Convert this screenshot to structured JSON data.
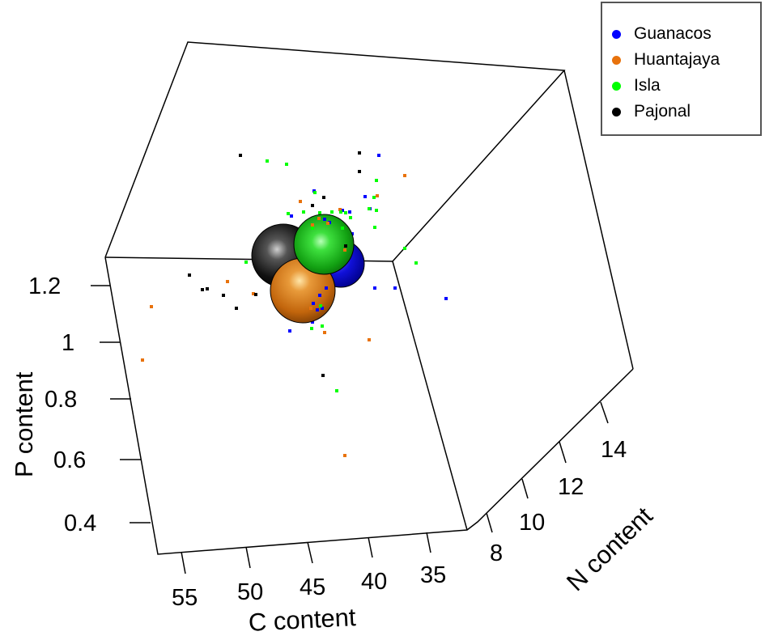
{
  "chart_data": {
    "type": "scatter3d",
    "title": "",
    "axes": {
      "x": {
        "label": "C content",
        "ticks": [
          55,
          50,
          45,
          40,
          35
        ],
        "range": [
          33,
          57
        ]
      },
      "y": {
        "label": "N content",
        "ticks": [
          8,
          10,
          12,
          14
        ],
        "range": [
          7,
          15.5
        ]
      },
      "z": {
        "label": "P content",
        "ticks": [
          1.2,
          1,
          0.8,
          0.6,
          0.4
        ],
        "range": [
          0.35,
          1.3
        ]
      }
    },
    "legend_position": "top-right",
    "grid": false,
    "series": [
      {
        "name": "Guanacos",
        "color": "#0000ff",
        "centroid_sphere": true
      },
      {
        "name": "Huantajaya",
        "color": "#e8720c",
        "centroid_sphere": true
      },
      {
        "name": "Isla",
        "color": "#00ff00",
        "centroid_sphere": true
      },
      {
        "name": "Pajonal",
        "color": "#000000",
        "centroid_sphere": true
      }
    ],
    "projected_points": {
      "Guanacos": [
        [
          468,
          192
        ],
        [
          388,
          236
        ],
        [
          451,
          243
        ],
        [
          457,
          258
        ],
        [
          360,
          267
        ],
        [
          423,
          260
        ],
        [
          401,
          271
        ],
        [
          432,
          262
        ],
        [
          407,
          275
        ],
        [
          435,
          289
        ],
        [
          463,
          356
        ],
        [
          488,
          356
        ],
        [
          551,
          369
        ],
        [
          403,
          356
        ],
        [
          395,
          365
        ],
        [
          387,
          375
        ],
        [
          392,
          383
        ],
        [
          398,
          381
        ],
        [
          388,
          392
        ],
        [
          358,
          409
        ],
        [
          386,
          398
        ]
      ],
      "Huantajaya": [
        [
          500,
          217
        ],
        [
          466,
          242
        ],
        [
          371,
          249
        ],
        [
          420,
          259
        ],
        [
          394,
          270
        ],
        [
          405,
          276
        ],
        [
          386,
          278
        ],
        [
          426,
          309
        ],
        [
          281,
          348
        ],
        [
          187,
          379
        ],
        [
          313,
          363
        ],
        [
          384,
          381
        ],
        [
          401,
          411
        ],
        [
          456,
          420
        ],
        [
          176,
          445
        ],
        [
          426,
          563
        ]
      ],
      "Isla": [
        [
          330,
          199
        ],
        [
          354,
          203
        ],
        [
          465,
          223
        ],
        [
          389,
          238
        ],
        [
          356,
          264
        ],
        [
          375,
          262
        ],
        [
          395,
          263
        ],
        [
          410,
          262
        ],
        [
          421,
          262
        ],
        [
          427,
          263
        ],
        [
          456,
          258
        ],
        [
          465,
          260
        ],
        [
          462,
          244
        ],
        [
          463,
          281
        ],
        [
          433,
          269
        ],
        [
          386,
          282
        ],
        [
          423,
          282
        ],
        [
          304,
          324
        ],
        [
          514,
          325
        ],
        [
          500,
          307
        ],
        [
          399,
          385
        ],
        [
          396,
          378
        ],
        [
          385,
          406
        ],
        [
          398,
          403
        ],
        [
          416,
          483
        ]
      ],
      "Pajonal": [
        [
          297,
          192
        ],
        [
          444,
          189
        ],
        [
          444,
          212
        ],
        [
          400,
          244
        ],
        [
          386,
          254
        ],
        [
          427,
          304
        ],
        [
          234,
          340
        ],
        [
          250,
          358
        ],
        [
          256,
          357
        ],
        [
          276,
          365
        ],
        [
          292,
          381
        ],
        [
          316,
          364
        ],
        [
          377,
          389
        ],
        [
          399,
          464
        ]
      ]
    }
  },
  "legend": {
    "items": [
      {
        "label": "Guanacos",
        "color": "#0000ff"
      },
      {
        "label": "Huantajaya",
        "color": "#e8720c"
      },
      {
        "label": "Isla",
        "color": "#00ff00"
      },
      {
        "label": "Pajonal",
        "color": "#000000"
      }
    ]
  },
  "labels": {
    "z_title": "P content",
    "x_title": "C content",
    "y_title": "N content",
    "z_ticks": [
      "1.2",
      "1",
      "0.8",
      "0.6",
      "0.4"
    ],
    "x_ticks": [
      "55",
      "50",
      "45",
      "40",
      "35"
    ],
    "y_ticks": [
      "8",
      "10",
      "12",
      "14"
    ]
  }
}
